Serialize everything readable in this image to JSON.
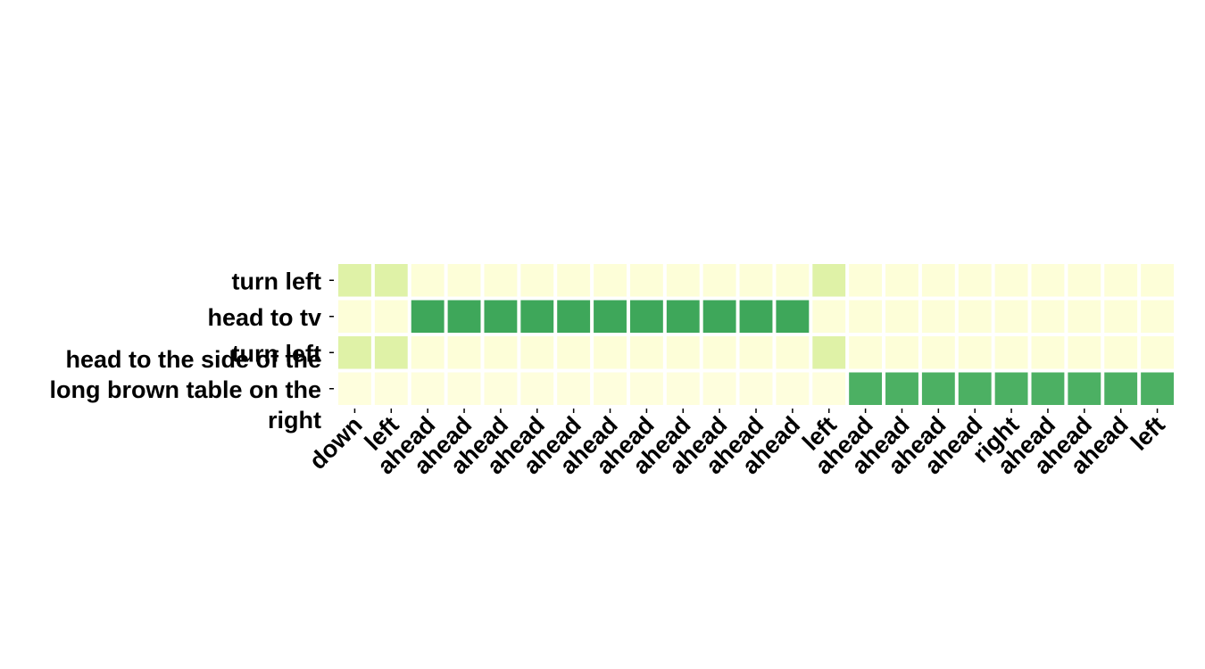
{
  "chart_data": {
    "type": "heatmap",
    "title": "",
    "xlabel": "",
    "ylabel": "",
    "x_labels": [
      "down",
      "left",
      "ahead",
      "ahead",
      "ahead",
      "ahead",
      "ahead",
      "ahead",
      "ahead",
      "ahead",
      "ahead",
      "ahead",
      "ahead",
      "left",
      "ahead",
      "ahead",
      "ahead",
      "ahead",
      "right",
      "ahead",
      "ahead",
      "ahead",
      "left"
    ],
    "y_labels": [
      [
        "turn left"
      ],
      [
        "head to tv"
      ],
      [
        "turn left"
      ],
      [
        "head to the side of the",
        "long brown table on the",
        "right"
      ]
    ],
    "values": [
      [
        0.3,
        0.3,
        0.05,
        0.05,
        0.05,
        0.05,
        0.05,
        0.05,
        0.05,
        0.05,
        0.05,
        0.05,
        0.05,
        0.3,
        0.05,
        0.05,
        0.05,
        0.05,
        0.05,
        0.05,
        0.05,
        0.05,
        0.05
      ],
      [
        0.05,
        0.05,
        0.85,
        0.85,
        0.85,
        0.85,
        0.85,
        0.85,
        0.85,
        0.85,
        0.85,
        0.85,
        0.85,
        0.05,
        0.05,
        0.05,
        0.05,
        0.05,
        0.05,
        0.05,
        0.05,
        0.05,
        0.05
      ],
      [
        0.3,
        0.3,
        0.05,
        0.05,
        0.05,
        0.05,
        0.05,
        0.05,
        0.05,
        0.05,
        0.05,
        0.05,
        0.05,
        0.3,
        0.05,
        0.05,
        0.05,
        0.05,
        0.05,
        0.05,
        0.05,
        0.05,
        0.05
      ],
      [
        0.03,
        0.03,
        0.03,
        0.03,
        0.03,
        0.03,
        0.03,
        0.03,
        0.03,
        0.03,
        0.03,
        0.03,
        0.03,
        0.03,
        0.8,
        0.8,
        0.8,
        0.8,
        0.8,
        0.8,
        0.8,
        0.8,
        0.8
      ]
    ],
    "colormap": [
      "#ffffe5",
      "#f7fcb9",
      "#d9f0a3",
      "#addd8e",
      "#78c679",
      "#41ab5d",
      "#238443"
    ],
    "grid": false,
    "legend": "none"
  }
}
